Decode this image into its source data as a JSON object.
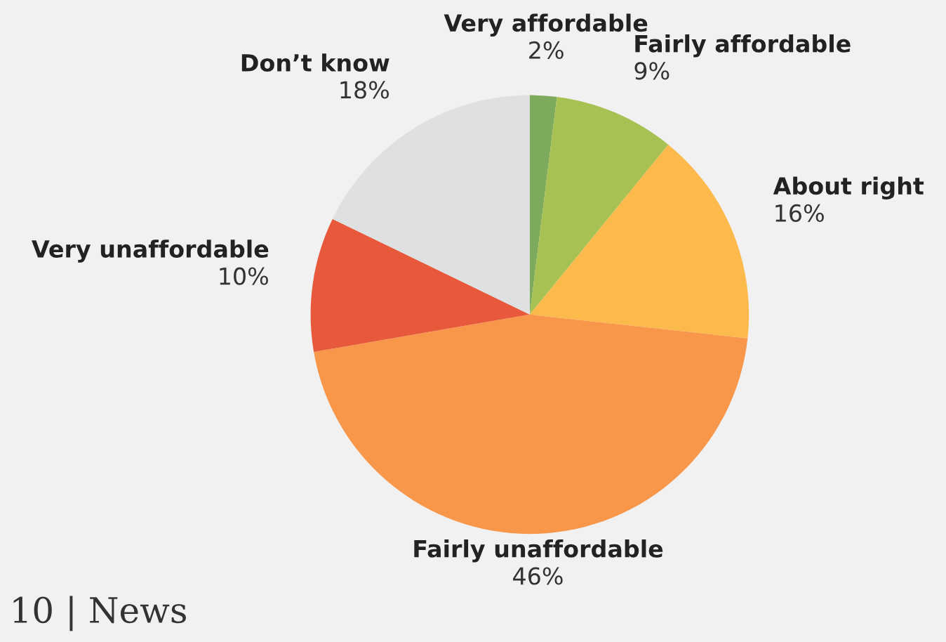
{
  "chart_data": {
    "type": "pie",
    "categories": [
      "Very affordable",
      "Fairly affordable",
      "About right",
      "Fairly unaffordable",
      "Very unaffordable",
      "Don’t know"
    ],
    "values": [
      2,
      9,
      16,
      46,
      10,
      18
    ],
    "colors": [
      "#7daa5c",
      "#a7c153",
      "#fcb94c",
      "#f89649",
      "#e8593c",
      "#dfe0e1"
    ],
    "value_labels": [
      "2%",
      "9%",
      "16%",
      "46%",
      "10%",
      "18%"
    ],
    "annotations": [
      "10 | News"
    ]
  }
}
